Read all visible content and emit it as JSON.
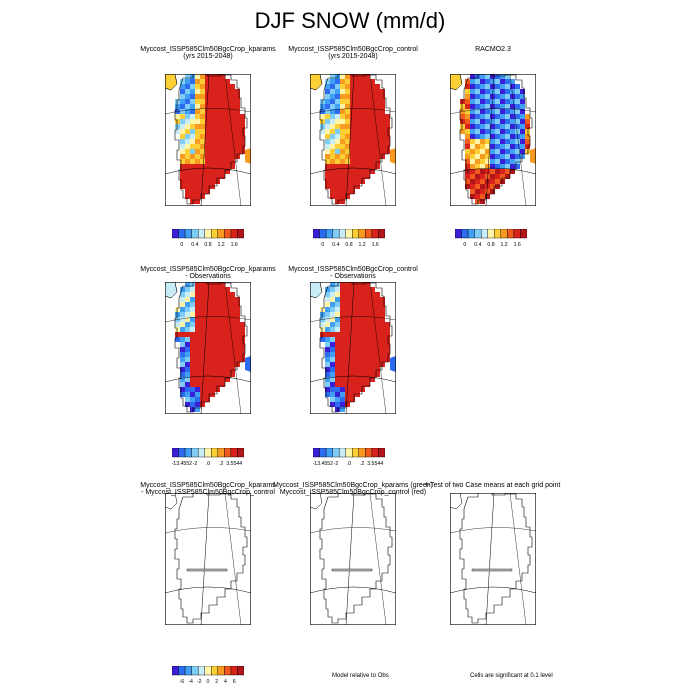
{
  "title": "DJF SNOW (mm/d)",
  "rows": [
    {
      "panels": [
        {
          "title1": "Myccost_ISSP585Clm50BgcCrop_kparams",
          "title2": "(yrs 2015-2048)",
          "kind": "snow"
        },
        {
          "title1": "Myccost_ISSP585Clm50BgcCrop_control",
          "title2": "(yrs 2015-2048)",
          "kind": "snow"
        },
        {
          "title1": "RACMO2.3",
          "title2": "",
          "kind": "obs"
        }
      ],
      "colorbars": [
        {
          "labels": [
            "0",
            "0.4",
            "0.8",
            "1.2",
            "1.6"
          ]
        },
        {
          "labels": [
            "0",
            "0.4",
            "0.8",
            "1.2",
            "1.6"
          ]
        },
        {
          "labels": [
            "0",
            "0.4",
            "0.8",
            "1.2",
            "1.6"
          ]
        }
      ]
    },
    {
      "panels": [
        {
          "title1": "Myccost_ISSP585Clm50BgcCrop_kparams",
          "title2": "- Observations",
          "kind": "bias"
        },
        {
          "title1": "Myccost_ISSP585Clm50BgcCrop_control",
          "title2": "- Observations",
          "kind": "bias"
        }
      ],
      "colorbars": [
        {
          "labels": [
            "-13.4552",
            "-2",
            ".0",
            ".2",
            "3.5544"
          ]
        },
        {
          "labels": [
            "-13.4552",
            "-2",
            ".0",
            ".2",
            "3.5544"
          ]
        }
      ]
    },
    {
      "panels": [
        {
          "title1": "Myccost_ISSP585Clm50BgcCrop_kparams",
          "title2": "- Myccost_ISSP585Clm50BgcCrop_control",
          "kind": "blank"
        },
        {
          "title1": "Myccost_ISSP585Clm50BgcCrop_kparams (green)",
          "title2": "Myccost_ISSP585Clm50BgcCrop_control (red)",
          "kind": "blank"
        },
        {
          "title1": "t-Test of two Case means at each grid point",
          "title2": "",
          "kind": "blank"
        }
      ],
      "colorbars": [
        {
          "labels": [
            "-6",
            "-4",
            "-2",
            "0",
            "2",
            "4",
            "6"
          ]
        }
      ]
    }
  ],
  "notes": {
    "model_relative": "Model relative to Obs",
    "significance": "Cells are significant at 0.1 level"
  },
  "colors": {
    "snow_scale": [
      "#3a1fd6",
      "#2d6cf0",
      "#3fa0f5",
      "#7fcdf7",
      "#c8edf7",
      "#fff4a8",
      "#fbcf35",
      "#f79a1f",
      "#f05a1c",
      "#d9221c",
      "#b0151a"
    ],
    "bias_scale": [
      "#3a1fd6",
      "#2d6cf0",
      "#3fa0f5",
      "#7fcdf7",
      "#c8edf7",
      "#fff4a8",
      "#fbcf35",
      "#f79a1f",
      "#f05a1c",
      "#d9221c",
      "#b0151a"
    ],
    "diff_scale": [
      "#3a1fd6",
      "#2d6cf0",
      "#3fa0f5",
      "#7fcdf7",
      "#c8edf7",
      "#fff4a8",
      "#fbcf35",
      "#f79a1f",
      "#f05a1c",
      "#d9221c",
      "#b0151a"
    ]
  }
}
